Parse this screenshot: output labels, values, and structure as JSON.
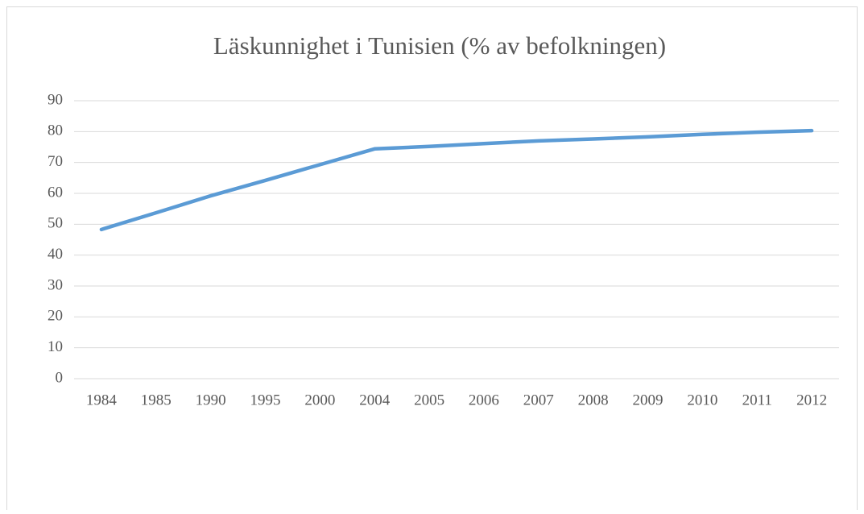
{
  "chart_data": {
    "type": "line",
    "title": "Läskunnighet i Tunisien (% av befolkningen)",
    "categories": [
      "1984",
      "1985",
      "1990",
      "1995",
      "2000",
      "2004",
      "2005",
      "2006",
      "2007",
      "2008",
      "2009",
      "2010",
      "2011",
      "2012"
    ],
    "series": [
      {
        "color": "#5b9bd5",
        "values": [
          48.3,
          53.7,
          59.2,
          64.2,
          69.3,
          74.4,
          75.2,
          76.1,
          77.0,
          77.6,
          78.3,
          79.1,
          79.8,
          80.3
        ]
      }
    ],
    "ylim": [
      0,
      90
    ],
    "yticks": [
      0,
      10,
      20,
      30,
      40,
      50,
      60,
      70,
      80,
      90
    ],
    "grid": true
  }
}
